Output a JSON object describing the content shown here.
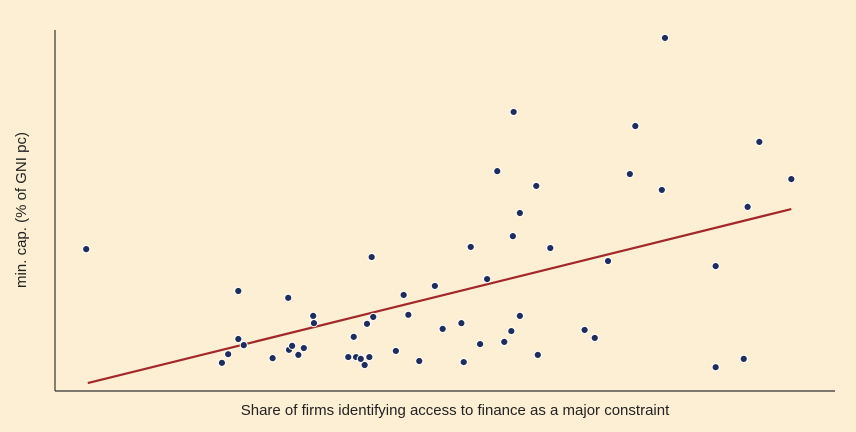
{
  "chart_data": {
    "type": "scatter",
    "xlabel": "Share of firms identifying access to finance as a major constraint",
    "ylabel": "min. cap. (% of GNI pc)",
    "x": [
      4.0,
      21.4,
      22.2,
      23.5,
      23.5,
      24.2,
      27.9,
      29.9,
      30.0,
      30.4,
      31.2,
      31.9,
      33.1,
      33.2,
      37.6,
      38.3,
      38.6,
      39.2,
      39.7,
      40.0,
      40.3,
      40.6,
      40.8,
      43.7,
      44.7,
      45.3,
      46.7,
      48.7,
      49.7,
      52.1,
      52.4,
      53.3,
      54.5,
      55.4,
      56.7,
      57.6,
      58.5,
      58.7,
      58.8,
      59.6,
      59.6,
      61.7,
      61.9,
      63.5,
      67.9,
      69.2,
      70.9,
      73.7,
      74.4,
      77.8,
      78.2,
      84.7,
      84.7,
      88.3,
      88.8,
      90.3,
      94.4
    ],
    "y": [
      39.3,
      7.8,
      10.2,
      27.7,
      14.4,
      12.7,
      9.1,
      25.8,
      11.4,
      12.5,
      10.0,
      11.9,
      20.8,
      18.8,
      9.4,
      15.0,
      9.4,
      8.9,
      7.2,
      18.6,
      9.4,
      37.1,
      20.5,
      11.1,
      26.6,
      21.1,
      8.3,
      29.1,
      17.2,
      18.8,
      8.0,
      39.9,
      13.0,
      31.0,
      60.9,
      13.6,
      16.6,
      42.9,
      77.3,
      49.3,
      20.8,
      56.8,
      10.0,
      39.6,
      16.9,
      14.7,
      36.0,
      60.1,
      73.4,
      55.7,
      97.8,
      34.6,
      6.6,
      8.9,
      51.0,
      69.0,
      58.7
    ],
    "color": "#1f2d5c",
    "trend": {
      "x": [
        4.2,
        94.4
      ],
      "y": [
        2.2,
        50.4
      ],
      "color": "#a3282a"
    },
    "xlim": [
      0,
      100
    ],
    "ylim": [
      0,
      100
    ]
  }
}
